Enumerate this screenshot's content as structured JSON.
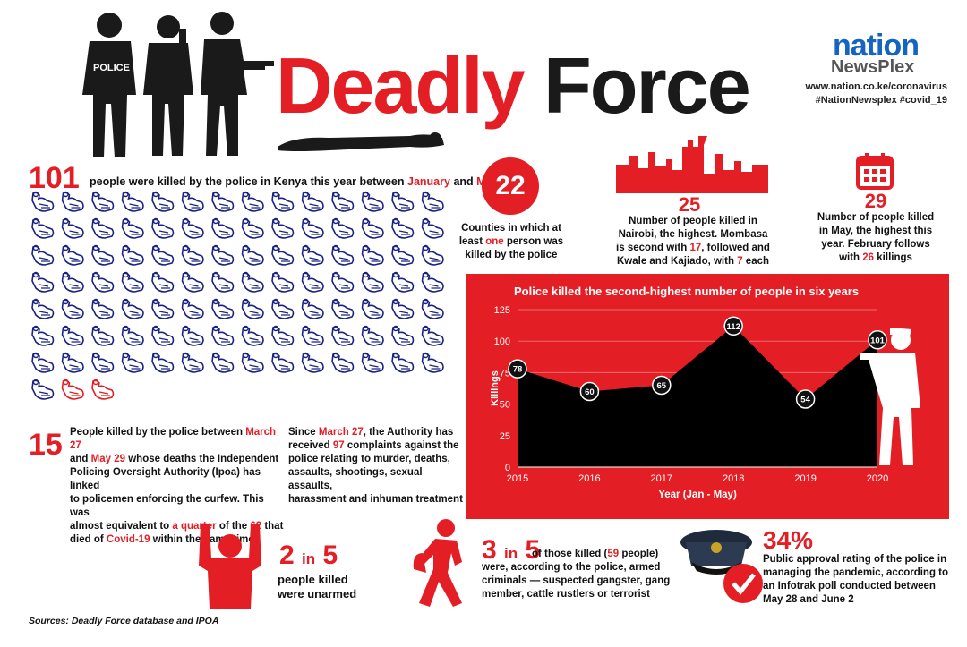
{
  "header": {
    "title_red": "Deadly",
    "title_dark": "Force",
    "brand_top": "nation",
    "brand_bottom": "NewsPlex",
    "website": "www.nation.co.ke/coronavirus",
    "hashtags": "#NationNewsplex #covid_19",
    "police_vest_label": "POLICE"
  },
  "killed_total": {
    "number": "101",
    "text_before": "people were killed by the police in Kenya this year between",
    "month_start": "January",
    "and": "and",
    "month_end": "May",
    "icon_count": 101,
    "highlighted_icons": 2,
    "icon_color": "#1a237e",
    "highlight_color": "#e31e24"
  },
  "counties": {
    "number": "22",
    "line1": "Counties in which at",
    "line2_before": "least",
    "line2_red": "one",
    "line2_after": "person was",
    "line3": "killed by the police"
  },
  "nairobi": {
    "number": "25",
    "line1": "Number of people killed in",
    "line2": "Nairobi, the highest. Mombasa",
    "line3_before": "is second with",
    "line3_red": "17",
    "line3_after": ", followed and",
    "line4_before": "Kwale and Kajiado, with",
    "line4_red": "7",
    "line4_after": "each"
  },
  "may": {
    "number": "29",
    "line1": "Number of people killed",
    "line2": "in May, the highest this",
    "line3": "year. February follows",
    "line4_before": "with",
    "line4_red": "26",
    "line4_after": "killings"
  },
  "chart_data": {
    "type": "area",
    "title": "Police killed the second-highest number of people in six years",
    "xlabel": "Year (Jan - May)",
    "ylabel": "Killings",
    "x": [
      "2015",
      "2016",
      "2017",
      "2018",
      "2019",
      "2020"
    ],
    "values": [
      78,
      60,
      65,
      112,
      54,
      101
    ],
    "ylim": [
      0,
      125
    ],
    "yticks": [
      "0",
      "25",
      "50",
      "75",
      "100",
      "125"
    ],
    "fill_color": "#000000",
    "background": "#e31e24"
  },
  "curfew": {
    "number": "15",
    "l1_a": "People killed by the police between",
    "l1_red": "March 27",
    "l2_a": "and",
    "l2_red": "May 29",
    "l2_b": "whose deaths the Independent",
    "l3": "Policing Oversight Authority (Ipoa) has linked",
    "l4": "to policemen enforcing the curfew. This was",
    "l5_a": "almost equivalent to",
    "l5_red": "a quarter",
    "l5_b": "of the",
    "l5_red2": "62",
    "l5_c": "that",
    "l6_a": "died of",
    "l6_red": "Covid-19",
    "l6_b": "within the same time."
  },
  "complaints": {
    "l1_a": "Since",
    "l1_red": "March 27",
    "l1_b": ", the Authority has",
    "l2_a": "received",
    "l2_red": "97",
    "l2_b": "complaints against the",
    "l3": "police relating to murder, deaths,",
    "l4": "assaults, shootings, sexual assaults,",
    "l5": "harassment and inhuman treatment"
  },
  "unarmed": {
    "num1": "2",
    "in": "in",
    "num2": "5",
    "line1": "people killed",
    "line2": "were unarmed"
  },
  "criminals": {
    "num1": "3",
    "in": "in",
    "num2": "5",
    "l1_a": "of those killed (",
    "l1_red": "59",
    "l1_b": "people)",
    "l2": "were, according to the police, armed",
    "l3": "criminals — suspected gangster, gang",
    "l4": "member, cattle rustlers or terrorist"
  },
  "approval": {
    "pct": "34%",
    "l1": "Public approval rating of the police in",
    "l2": "managing the pandemic, according to",
    "l3": "an Infotrak poll conducted between",
    "l4": "May 28 and June 2"
  },
  "sources": "Sources: Deadly Force database and IPOA"
}
